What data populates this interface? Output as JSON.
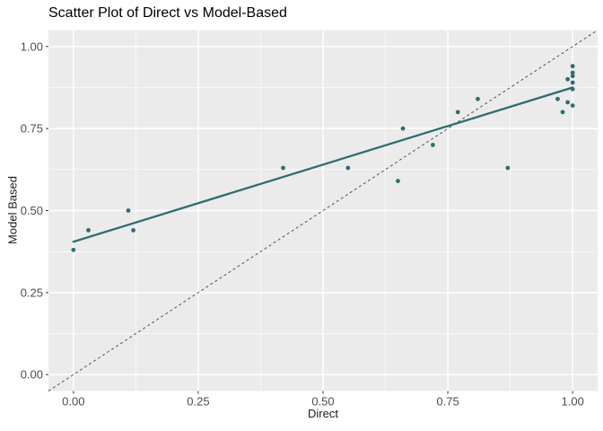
{
  "chart_data": {
    "type": "scatter",
    "title": "Scatter Plot of Direct vs Model-Based",
    "xlabel": "Direct",
    "ylabel": "Model Based",
    "xlim": [
      -0.05,
      1.05
    ],
    "ylim": [
      -0.05,
      1.05
    ],
    "x_ticks": [
      0.0,
      0.25,
      0.5,
      0.75,
      1.0
    ],
    "y_ticks": [
      0.0,
      0.25,
      0.5,
      0.75,
      1.0
    ],
    "x_tick_labels": [
      "0.00",
      "0.25",
      "0.50",
      "0.75",
      "1.00"
    ],
    "y_tick_labels": [
      "0.00",
      "0.25",
      "0.50",
      "0.75",
      "1.00"
    ],
    "minor_ticks": [
      0.125,
      0.375,
      0.625,
      0.875
    ],
    "grid": true,
    "legend": "none",
    "points": [
      [
        0.0,
        0.38
      ],
      [
        0.03,
        0.44
      ],
      [
        0.11,
        0.5
      ],
      [
        0.12,
        0.44
      ],
      [
        0.42,
        0.63
      ],
      [
        0.55,
        0.63
      ],
      [
        0.65,
        0.59
      ],
      [
        0.66,
        0.75
      ],
      [
        0.72,
        0.7
      ],
      [
        0.77,
        0.8
      ],
      [
        0.81,
        0.84
      ],
      [
        0.87,
        0.63
      ],
      [
        0.97,
        0.84
      ],
      [
        0.98,
        0.8
      ],
      [
        0.99,
        0.83
      ],
      [
        1.0,
        0.82
      ],
      [
        0.99,
        0.9
      ],
      [
        1.0,
        0.87
      ],
      [
        1.0,
        0.89
      ],
      [
        1.0,
        0.91
      ],
      [
        1.0,
        0.92
      ],
      [
        1.0,
        0.94
      ]
    ],
    "trend_line": {
      "x1": 0.0,
      "y1": 0.405,
      "x2": 1.0,
      "y2": 0.875,
      "style": "solid"
    },
    "identity_line": {
      "slope": 1,
      "intercept": 0,
      "style": "dashed"
    },
    "colors": {
      "point": "#2e6d72",
      "trend": "#2e6d72",
      "identity": "#404040",
      "panel_bg": "#ebebeb",
      "grid_major": "#ffffff",
      "grid_minor": "#ffffff",
      "tick_label": "#4d4d4d",
      "tick_mark": "#333333",
      "axis_title": "#1a1a1a",
      "title": "#000000",
      "background": "#ffffff"
    }
  }
}
